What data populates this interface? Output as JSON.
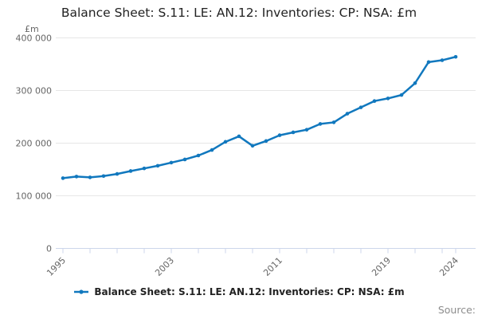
{
  "title": "Balance Sheet: S.11: LE: AN.12: Inventories: CP: NSA: £m",
  "source_label": "Source:",
  "legend": {
    "label": "Balance Sheet: S.11: LE: AN.12: Inventories: CP: NSA: £m"
  },
  "colors": {
    "series": "#1178be",
    "grid": "#e6e6e6",
    "axis": "#ccd6eb",
    "muted_text": "#666666",
    "title_text": "#222222",
    "legend_text": "#222222",
    "source_text": "#8c8c8c"
  },
  "chart_data": {
    "type": "line",
    "title": "Balance Sheet: S.11: LE: AN.12: Inventories: CP: NSA: £m",
    "series_name": "Balance Sheet: S.11: LE: AN.12: Inventories: CP: NSA: £m",
    "unit_label": "£m",
    "xlabel": "",
    "ylabel": "£m",
    "grid": true,
    "legend_position": "bottom",
    "ylim": [
      0,
      400000
    ],
    "x": [
      1995,
      1996,
      1997,
      1998,
      1999,
      2000,
      2001,
      2002,
      2003,
      2004,
      2005,
      2006,
      2007,
      2008,
      2009,
      2010,
      2011,
      2012,
      2013,
      2014,
      2015,
      2016,
      2017,
      2018,
      2019,
      2020,
      2021,
      2022,
      2023,
      2024
    ],
    "values": [
      133500,
      136500,
      135000,
      137500,
      141500,
      147000,
      152000,
      157000,
      163000,
      169000,
      176500,
      187000,
      202500,
      213000,
      195000,
      204000,
      215000,
      220500,
      225500,
      236500,
      239500,
      256000,
      268000,
      280000,
      285000,
      291500,
      314000,
      354000,
      357500,
      364000
    ],
    "yticks": [
      {
        "v": 0,
        "label": "0"
      },
      {
        "v": 100000,
        "label": "100 000"
      },
      {
        "v": 200000,
        "label": "200 000"
      },
      {
        "v": 300000,
        "label": "300 000"
      },
      {
        "v": 400000,
        "label": "400 000"
      }
    ],
    "xticks_labeled": [
      {
        "year": 1995,
        "label": "1995"
      },
      {
        "year": 2003,
        "label": "2003"
      },
      {
        "year": 2011,
        "label": "2011"
      },
      {
        "year": 2019,
        "label": "2019"
      },
      {
        "year": 2024,
        "label": "2024"
      }
    ],
    "xtick_start": 1995,
    "xtick_step": 2,
    "xtick_end": 2023,
    "xtick_last": 2024
  }
}
